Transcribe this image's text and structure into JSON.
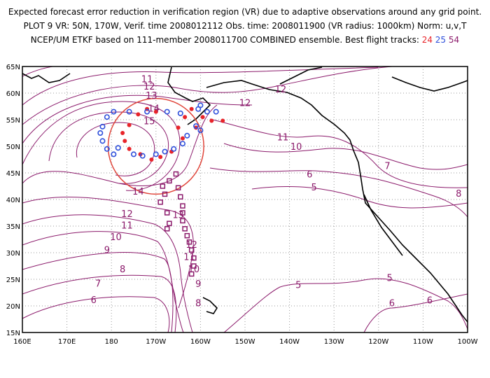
{
  "title": {
    "line1": "Expected forecast error reduction in verification region (VR) due to adaptive observations around any grid point.",
    "line2": "PLOT 9 VR: 50N, 170W, Verif. time 2008012112 Obs. time: 2008011900 (VR radius: 1000km) Norm: u,v,T",
    "line3_prefix": "NCEP/UM ETKF based on 111-member 2008011700 COMBINED ensemble.  Best flight tracks: ",
    "track_a": "24",
    "track_b": "25",
    "track_c": "54"
  },
  "axes": {
    "lat_labels": [
      "65N",
      "60N",
      "55N",
      "50N",
      "45N",
      "40N",
      "35N",
      "30N",
      "25N",
      "20N",
      "15N"
    ],
    "lon_labels": [
      "160E",
      "170E",
      "180",
      "170W",
      "160W",
      "150W",
      "140W",
      "130W",
      "120W",
      "110W",
      "100W"
    ]
  },
  "contour_labels": [
    {
      "text": "11",
      "lon": -172,
      "lat": 62.7
    },
    {
      "text": "12",
      "lon": -171.5,
      "lat": 61.3
    },
    {
      "text": "13",
      "lon": -171,
      "lat": 59.6
    },
    {
      "text": "14",
      "lon": -170.5,
      "lat": 57.2
    },
    {
      "text": "15",
      "lon": -171.5,
      "lat": 54.8
    },
    {
      "text": "12",
      "lon": -142,
      "lat": 60.8
    },
    {
      "text": "12",
      "lon": -150,
      "lat": 58.2
    },
    {
      "text": "11",
      "lon": -141.5,
      "lat": 51.8
    },
    {
      "text": "10",
      "lon": -138.5,
      "lat": 50.0
    },
    {
      "text": "7",
      "lon": -118,
      "lat": 46.4
    },
    {
      "text": "6",
      "lon": -135.5,
      "lat": 44.8
    },
    {
      "text": "5",
      "lon": -134.5,
      "lat": 42.4
    },
    {
      "text": "8",
      "lon": -102,
      "lat": 41.2
    },
    {
      "text": "14",
      "lon": -174,
      "lat": 41.6
    },
    {
      "text": "13",
      "lon": -165,
      "lat": 37.2
    },
    {
      "text": "12",
      "lon": -176.5,
      "lat": 37.4
    },
    {
      "text": "11",
      "lon": -176.5,
      "lat": 35.2
    },
    {
      "text": "10",
      "lon": -179,
      "lat": 33.0
    },
    {
      "text": "12",
      "lon": -162,
      "lat": 31.6
    },
    {
      "text": "9",
      "lon": -181,
      "lat": 30.6
    },
    {
      "text": "11",
      "lon": -162.5,
      "lat": 29.3
    },
    {
      "text": "10",
      "lon": -161.5,
      "lat": 27.0
    },
    {
      "text": "8",
      "lon": -177.5,
      "lat": 27.0
    },
    {
      "text": "9",
      "lon": -160.5,
      "lat": 24.2
    },
    {
      "text": "7",
      "lon": -183,
      "lat": 24.3
    },
    {
      "text": "6",
      "lon": -184,
      "lat": 21.2
    },
    {
      "text": "8",
      "lon": -160.5,
      "lat": 20.6
    },
    {
      "text": "5",
      "lon": -138,
      "lat": 24.0
    },
    {
      "text": "5",
      "lon": -117.5,
      "lat": 25.3
    },
    {
      "text": "6",
      "lon": -117,
      "lat": 20.6
    },
    {
      "text": "6",
      "lon": -108.5,
      "lat": 21.1
    }
  ],
  "verification_region": {
    "lat": 50,
    "lon": -170,
    "radius_km": 1000
  },
  "flight_tracks": [
    {
      "name": "24",
      "marker": "filled-circle",
      "color": "#e8242a",
      "points": [
        [
          -162,
          57.0
        ],
        [
          -163.5,
          55.5
        ],
        [
          -165,
          53.5
        ],
        [
          -164,
          51.5
        ],
        [
          -166.5,
          49.0
        ],
        [
          -169,
          48.0
        ],
        [
          -171,
          47.5
        ],
        [
          -173.5,
          48.5
        ],
        [
          -176,
          49.5
        ],
        [
          -177,
          51.0
        ],
        [
          -177.5,
          52.5
        ],
        [
          -176,
          54.0
        ],
        [
          -174,
          56.0
        ],
        [
          -172,
          57.0
        ],
        [
          -170,
          56.5
        ],
        [
          -161,
          53.5
        ],
        [
          -159.5,
          55.5
        ],
        [
          -157.5,
          54.8
        ],
        [
          -155,
          54.8
        ]
      ]
    },
    {
      "name": "25",
      "marker": "open-circle",
      "color": "#2e4fdb",
      "points": [
        [
          -182.5,
          52.5
        ],
        [
          -182,
          53.7
        ],
        [
          -181,
          55.5
        ],
        [
          -179.5,
          56.5
        ],
        [
          -182,
          51.0
        ],
        [
          -181,
          49.5
        ],
        [
          -179.5,
          48.5
        ],
        [
          -178.5,
          49.7
        ],
        [
          -175,
          48.5
        ],
        [
          -173,
          48.2
        ],
        [
          -170,
          48.5
        ],
        [
          -168,
          49.0
        ],
        [
          -166,
          49.5
        ],
        [
          -164,
          50.5
        ],
        [
          -163,
          52.0
        ],
        [
          -176,
          56.5
        ],
        [
          -172,
          56.5
        ],
        [
          -167.5,
          56.5
        ],
        [
          -164.5,
          56.2
        ],
        [
          -160.5,
          57.0
        ],
        [
          -160,
          57.7
        ],
        [
          -158.5,
          56.5
        ],
        [
          -156.5,
          56.5
        ],
        [
          -160,
          53.0
        ],
        [
          -161,
          53.8
        ]
      ]
    },
    {
      "name": "54",
      "marker": "open-square",
      "color": "#8b1a6b",
      "points": [
        [
          -165.5,
          44.8
        ],
        [
          -167,
          43.5
        ],
        [
          -168.5,
          42.5
        ],
        [
          -168,
          41.0
        ],
        [
          -169,
          39.5
        ],
        [
          -167.5,
          37.5
        ],
        [
          -167,
          35.5
        ],
        [
          -167.5,
          34.5
        ],
        [
          -165,
          42.2
        ],
        [
          -164.5,
          40.5
        ],
        [
          -164,
          38.8
        ],
        [
          -164,
          37.5
        ],
        [
          -164,
          36.0
        ],
        [
          -163.5,
          34.5
        ],
        [
          -163,
          33.2
        ],
        [
          -162.5,
          32.0
        ],
        [
          -162,
          30.5
        ],
        [
          -161.5,
          29.0
        ],
        [
          -161.5,
          27.5
        ],
        [
          -162,
          26.0
        ]
      ]
    }
  ]
}
